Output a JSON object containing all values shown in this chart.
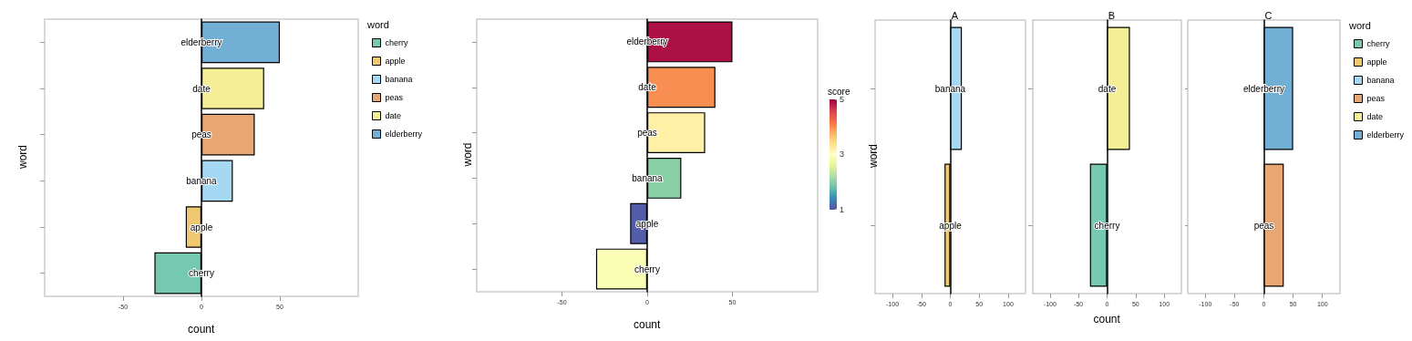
{
  "chart_data": [
    {
      "type": "bar",
      "orientation": "horizontal",
      "xlabel": "count",
      "ylabel": "word",
      "legend_title": "word",
      "legend": "right",
      "xlim": [
        -100,
        100
      ],
      "xticks": [
        -50,
        0,
        50
      ],
      "categories": [
        "elderberry",
        "date",
        "peas",
        "banana",
        "apple",
        "cherry"
      ],
      "series": [
        {
          "name": "cherry",
          "color": "#74c9b0",
          "values": [
            null,
            null,
            null,
            null,
            null,
            -30
          ]
        },
        {
          "name": "apple",
          "color": "#f0c870",
          "values": [
            null,
            null,
            null,
            null,
            -10,
            null
          ]
        },
        {
          "name": "banana",
          "color": "#a5d8f3",
          "values": [
            null,
            null,
            null,
            20,
            null,
            null
          ]
        },
        {
          "name": "peas",
          "color": "#e8a673",
          "values": [
            null,
            null,
            34,
            null,
            null,
            null
          ]
        },
        {
          "name": "date",
          "color": "#f6ee97",
          "values": [
            null,
            40,
            null,
            null,
            null,
            null
          ]
        },
        {
          "name": "elderberry",
          "color": "#72afd4",
          "values": [
            50,
            null,
            null,
            null,
            null,
            null
          ]
        }
      ]
    },
    {
      "type": "bar",
      "orientation": "horizontal",
      "xlabel": "count",
      "ylabel": "word",
      "clabel": "score",
      "clim": [
        1,
        5
      ],
      "cticks": [
        1,
        3,
        5
      ],
      "xlim": [
        -100,
        100
      ],
      "xticks": [
        -50,
        0,
        50
      ],
      "categories": [
        "elderberry",
        "date",
        "peas",
        "banana",
        "apple",
        "cherry"
      ],
      "values": [
        50,
        40,
        34,
        20,
        -10,
        -30
      ],
      "cvalues": [
        4.9,
        4.0,
        3.2,
        2.0,
        1.1,
        2.9
      ]
    },
    {
      "type": "bar",
      "orientation": "horizontal",
      "title": "A",
      "ylabel": "word",
      "xlim": [
        -130,
        130
      ],
      "xticks": [
        -100,
        -50,
        0,
        50,
        100
      ],
      "categories": [
        "banana",
        "apple"
      ],
      "series": [
        {
          "color": "#a5d8f3",
          "values": [
            20,
            null
          ]
        },
        {
          "color": "#f0c870",
          "values": [
            null,
            -10
          ]
        }
      ]
    },
    {
      "type": "bar",
      "orientation": "horizontal",
      "title": "B",
      "xlabel": "count",
      "xlim": [
        -130,
        130
      ],
      "xticks": [
        -100,
        -50,
        0,
        50,
        100
      ],
      "categories": [
        "date",
        "cherry"
      ],
      "series": [
        {
          "color": "#f6ee97",
          "values": [
            40,
            null
          ]
        },
        {
          "color": "#74c9b0",
          "values": [
            null,
            -30
          ]
        }
      ]
    },
    {
      "type": "bar",
      "orientation": "horizontal",
      "title": "C",
      "legend_title": "word",
      "legend": "right",
      "xlim": [
        -130,
        130
      ],
      "xticks": [
        -100,
        -50,
        0,
        50,
        100
      ],
      "categories": [
        "elderberry",
        "peas"
      ],
      "series": [
        {
          "name": "cherry",
          "color": "#74c9b0",
          "values": [
            null,
            null
          ]
        },
        {
          "name": "apple",
          "color": "#f0c870",
          "values": [
            null,
            null
          ]
        },
        {
          "name": "banana",
          "color": "#a5d8f3",
          "values": [
            null,
            null
          ]
        },
        {
          "name": "peas",
          "color": "#e8a673",
          "values": [
            null,
            34
          ]
        },
        {
          "name": "date",
          "color": "#f6ee97",
          "values": [
            null,
            null
          ]
        },
        {
          "name": "elderberry",
          "color": "#72afd4",
          "values": [
            50,
            null
          ]
        }
      ]
    }
  ]
}
